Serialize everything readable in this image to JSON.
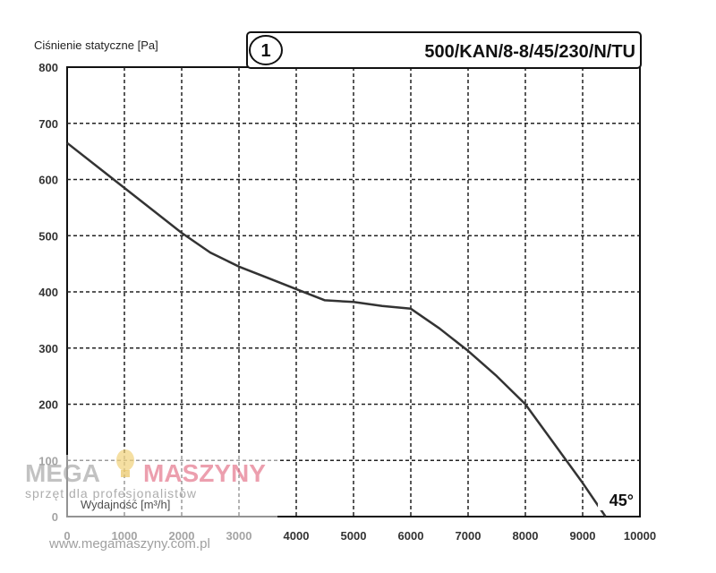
{
  "chart_data": {
    "type": "line",
    "title": "500/KAN/8-8/45/230/N/TU",
    "badge": "1",
    "ylabel": "Ciśnienie statyczne [Pa]",
    "xlabel": "Wydajność [m³/h]",
    "annotation": "45°",
    "xlim": [
      0,
      10000
    ],
    "ylim": [
      0,
      800
    ],
    "x_ticks": [
      "0",
      "1000",
      "2000",
      "3000",
      "4000",
      "5000",
      "6000",
      "7000",
      "8000",
      "9000",
      "10000"
    ],
    "y_ticks": [
      "0",
      "100",
      "200",
      "300",
      "400",
      "500",
      "600",
      "700",
      "800"
    ],
    "grid": true,
    "grid_style": "dashed",
    "series": [
      {
        "color": "#333333",
        "x": [
          0,
          1000,
          2000,
          2500,
          3000,
          3500,
          4000,
          4500,
          5000,
          5500,
          6000,
          6500,
          7000,
          7500,
          8000,
          8500,
          9000,
          9400
        ],
        "y": [
          665,
          585,
          505,
          470,
          445,
          425,
          405,
          385,
          382,
          375,
          370,
          335,
          295,
          250,
          200,
          130,
          60,
          0
        ]
      }
    ]
  },
  "watermark": {
    "brand_left": "MEGA",
    "brand_right": "MASZYNY",
    "tagline": "sprzęt dla profesjonalistów",
    "url": "www.megamaszyny.com.pl",
    "brand_color": "#e0607a",
    "logo_icon": "lightbulb-icon"
  }
}
